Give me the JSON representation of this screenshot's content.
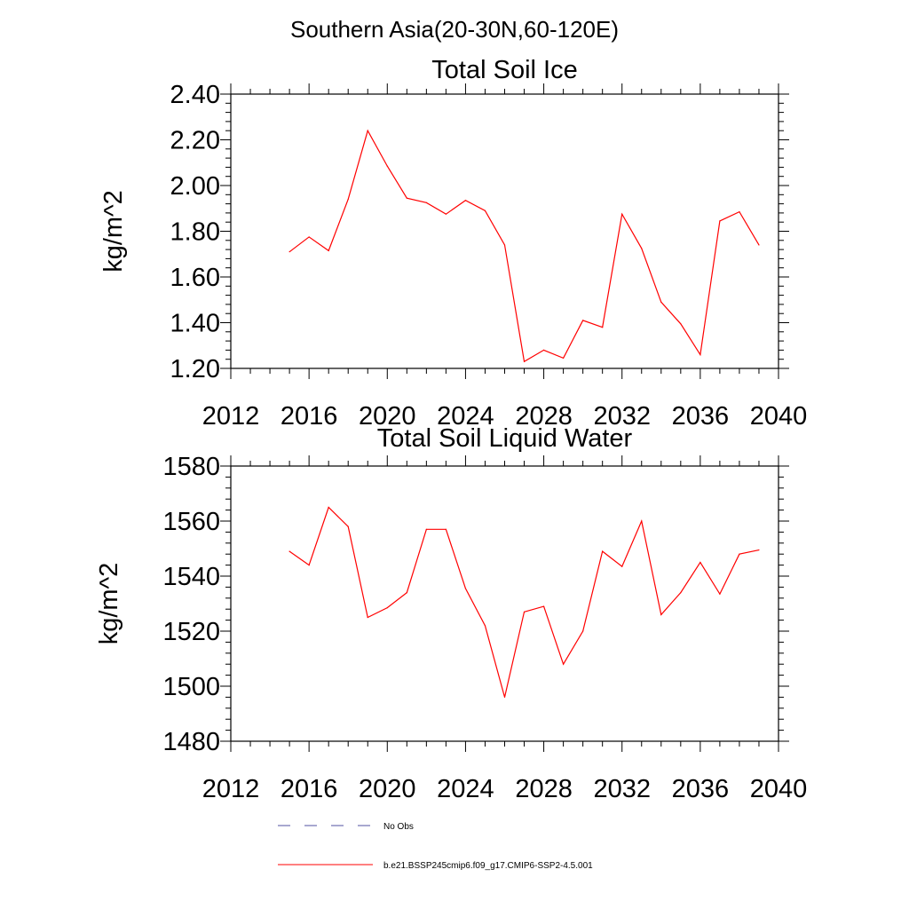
{
  "figure": {
    "title": "Southern Asia(20-30N,60-120E)"
  },
  "chart_data": [
    {
      "type": "line",
      "title": "Total Soil Ice",
      "xlabel": "",
      "ylabel": "kg/m^2",
      "xlim": [
        2012,
        2040
      ],
      "ylim": [
        1.2,
        2.4
      ],
      "xticks": [
        "2012",
        "2016",
        "2020",
        "2024",
        "2028",
        "2032",
        "2036",
        "2040"
      ],
      "yticks": [
        "1.20",
        "1.40",
        "1.60",
        "1.80",
        "2.00",
        "2.20",
        "2.40"
      ],
      "grid": false,
      "x": [
        2015,
        2016,
        2017,
        2018,
        2019,
        2020,
        2021,
        2022,
        2023,
        2024,
        2025,
        2026,
        2027,
        2028,
        2029,
        2030,
        2031,
        2032,
        2033,
        2034,
        2035,
        2036,
        2037,
        2038,
        2039
      ],
      "series": [
        {
          "name": "b.e21.BSSP245cmip6.f09_g17.CMIP6-SSP2-4.5.001",
          "color": "#ff0000",
          "values": [
            1.71,
            1.775,
            1.715,
            1.94,
            2.24,
            2.085,
            1.945,
            1.925,
            1.875,
            1.935,
            1.89,
            1.74,
            1.23,
            1.28,
            1.245,
            1.41,
            1.38,
            1.875,
            1.725,
            1.49,
            1.395,
            1.26,
            1.845,
            1.885,
            1.74
          ]
        }
      ]
    },
    {
      "type": "line",
      "title": "Total Soil Liquid Water",
      "xlabel": "",
      "ylabel": "kg/m^2",
      "xlim": [
        2012,
        2040
      ],
      "ylim": [
        1480,
        1580
      ],
      "xticks": [
        "2012",
        "2016",
        "2020",
        "2024",
        "2028",
        "2032",
        "2036",
        "2040"
      ],
      "yticks": [
        "1480",
        "1500",
        "1520",
        "1540",
        "1560",
        "1580"
      ],
      "grid": false,
      "x": [
        2015,
        2016,
        2017,
        2018,
        2019,
        2020,
        2021,
        2022,
        2023,
        2024,
        2025,
        2026,
        2027,
        2028,
        2029,
        2030,
        2031,
        2032,
        2033,
        2034,
        2035,
        2036,
        2037,
        2038,
        2039
      ],
      "series": [
        {
          "name": "b.e21.BSSP245cmip6.f09_g17.CMIP6-SSP2-4.5.001",
          "color": "#ff0000",
          "values": [
            1549,
            1544,
            1565,
            1558,
            1525,
            1528.5,
            1534,
            1557,
            1557,
            1535.5,
            1522,
            1496,
            1527,
            1529,
            1508,
            1520,
            1549,
            1543.5,
            1560,
            1526,
            1534,
            1545,
            1533.5,
            1548,
            1549.5
          ]
        }
      ]
    }
  ],
  "legend": {
    "placement": "bottom",
    "entries": [
      {
        "label": "No Obs",
        "color": "#5050a0",
        "style": "dashed"
      },
      {
        "label": "b.e21.BSSP245cmip6.f09_g17.CMIP6-SSP2-4.5.001",
        "color": "#ff0000",
        "style": "solid"
      }
    ]
  }
}
